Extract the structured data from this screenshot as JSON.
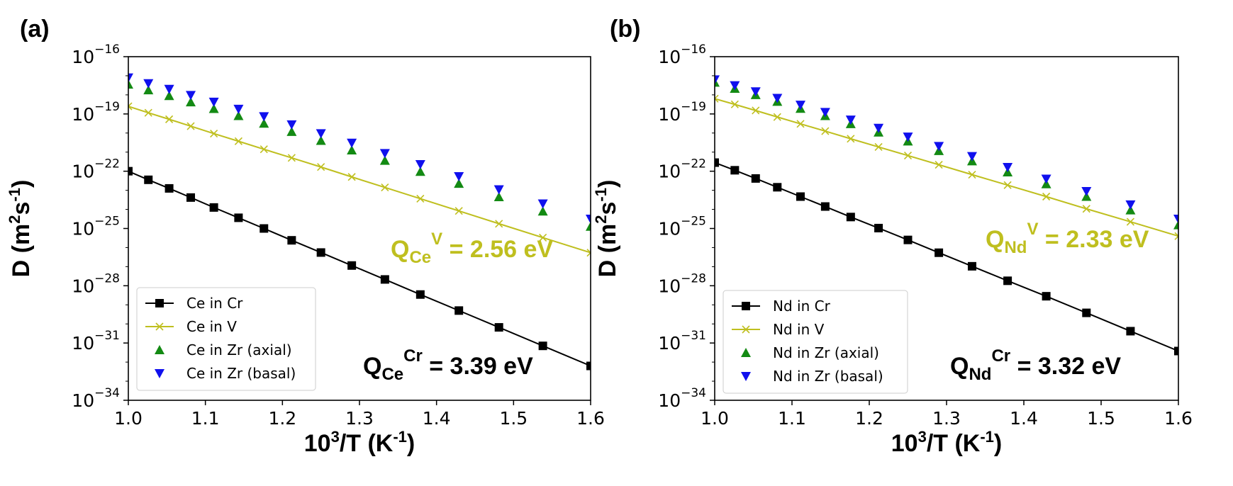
{
  "colors": {
    "cr": "#000000",
    "v": "#bfbf1f",
    "axial": "#138a13",
    "basal": "#1010ee"
  },
  "chart_data": [
    {
      "panel_label": "(a)",
      "type": "scatter",
      "xlabel": {
        "base": "10",
        "sup1": "3",
        "mid": "/T (K",
        "sup2": "-1",
        "end": ")"
      },
      "ylabel": {
        "base": "D (m",
        "sup1": "2",
        "mid": "s",
        "sup2": "-1",
        "end": ")"
      },
      "xlim": [
        1.0,
        1.6
      ],
      "ylim": [
        1e-34,
        1e-16
      ],
      "yscale": "log",
      "xticks": [
        "1.0",
        "1.1",
        "1.2",
        "1.3",
        "1.4",
        "1.5",
        "1.6"
      ],
      "yticks": [
        {
          "value": -16,
          "base": "10",
          "exp": "−16"
        },
        {
          "value": -19,
          "base": "10",
          "exp": "−19"
        },
        {
          "value": -22,
          "base": "10",
          "exp": "−22"
        },
        {
          "value": -25,
          "base": "10",
          "exp": "−25"
        },
        {
          "value": -28,
          "base": "10",
          "exp": "−28"
        },
        {
          "value": -31,
          "base": "10",
          "exp": "−31"
        },
        {
          "value": -34,
          "base": "10",
          "exp": "−34"
        }
      ],
      "x": [
        1.0,
        1.026,
        1.053,
        1.081,
        1.111,
        1.143,
        1.176,
        1.212,
        1.25,
        1.29,
        1.333,
        1.379,
        1.429,
        1.481,
        1.538,
        1.6
      ],
      "legend_position": "lower-left",
      "series": [
        {
          "name": "Ce in Cr",
          "key": "cr",
          "marker": "square",
          "line": true,
          "log10_y": [
            -22.0,
            -22.45,
            -22.9,
            -23.38,
            -23.9,
            -24.44,
            -25.0,
            -25.62,
            -26.26,
            -26.94,
            -27.67,
            -28.46,
            -29.3,
            -30.18,
            -31.15,
            -32.2
          ]
        },
        {
          "name": "Ce in V",
          "key": "v",
          "marker": "x",
          "line": true,
          "log10_y": [
            -18.6,
            -18.94,
            -19.28,
            -19.64,
            -20.03,
            -20.43,
            -20.85,
            -21.3,
            -21.78,
            -22.3,
            -22.85,
            -23.44,
            -24.08,
            -24.75,
            -25.48,
            -26.27
          ]
        },
        {
          "name": "Ce in Zr (axial)",
          "key": "axial",
          "marker": "triangle-up",
          "line": false,
          "log10_y": [
            -17.45,
            -17.75,
            -18.05,
            -18.38,
            -18.73,
            -19.1,
            -19.5,
            -19.93,
            -20.4,
            -20.9,
            -21.44,
            -22.02,
            -22.65,
            -23.35,
            -24.1,
            -24.9
          ]
        },
        {
          "name": "Ce in Zr (basal)",
          "key": "basal",
          "marker": "triangle-down",
          "line": false,
          "log10_y": [
            -17.1,
            -17.4,
            -17.7,
            -18.02,
            -18.37,
            -18.74,
            -19.13,
            -19.56,
            -20.02,
            -20.52,
            -21.06,
            -21.64,
            -22.27,
            -22.96,
            -23.7,
            -24.5
          ]
        }
      ],
      "annotations": [
        {
          "key": "v",
          "base": "Q",
          "sub": "Ce",
          "sup": "V",
          "value": " = 2.56 eV"
        },
        {
          "key": "cr",
          "base": "Q",
          "sub": "Ce",
          "sup": "Cr",
          "value": " = 3.39 eV"
        }
      ]
    },
    {
      "panel_label": "(b)",
      "type": "scatter",
      "xlabel": {
        "base": "10",
        "sup1": "3",
        "mid": "/T (K",
        "sup2": "-1",
        "end": ")"
      },
      "ylabel": {
        "base": "D (m",
        "sup1": "2",
        "mid": "s",
        "sup2": "-1",
        "end": ")"
      },
      "xlim": [
        1.0,
        1.6
      ],
      "ylim": [
        1e-34,
        1e-16
      ],
      "yscale": "log",
      "xticks": [
        "1.0",
        "1.1",
        "1.2",
        "1.3",
        "1.4",
        "1.5",
        "1.6"
      ],
      "yticks": [
        {
          "value": -16,
          "base": "10",
          "exp": "−16"
        },
        {
          "value": -19,
          "base": "10",
          "exp": "−19"
        },
        {
          "value": -22,
          "base": "10",
          "exp": "−22"
        },
        {
          "value": -25,
          "base": "10",
          "exp": "−25"
        },
        {
          "value": -28,
          "base": "10",
          "exp": "−28"
        },
        {
          "value": -31,
          "base": "10",
          "exp": "−31"
        },
        {
          "value": -34,
          "base": "10",
          "exp": "−34"
        }
      ],
      "x": [
        1.0,
        1.026,
        1.053,
        1.081,
        1.111,
        1.143,
        1.176,
        1.212,
        1.25,
        1.29,
        1.333,
        1.379,
        1.429,
        1.481,
        1.538,
        1.6
      ],
      "legend_position": "lower-left",
      "series": [
        {
          "name": "Nd in Cr",
          "key": "cr",
          "marker": "square",
          "line": true,
          "log10_y": [
            -21.55,
            -21.95,
            -22.38,
            -22.84,
            -23.33,
            -23.85,
            -24.4,
            -24.98,
            -25.6,
            -26.27,
            -26.98,
            -27.74,
            -28.55,
            -29.42,
            -30.38,
            -31.42
          ]
        },
        {
          "name": "Nd in V",
          "key": "v",
          "marker": "x",
          "line": true,
          "log10_y": [
            -18.2,
            -18.5,
            -18.82,
            -19.16,
            -19.52,
            -19.9,
            -20.3,
            -20.73,
            -21.18,
            -21.66,
            -22.18,
            -22.73,
            -23.33,
            -23.97,
            -24.65,
            -25.4
          ]
        },
        {
          "name": "Nd in Zr (axial)",
          "key": "axial",
          "marker": "triangle-up",
          "line": false,
          "log10_y": [
            -17.35,
            -17.67,
            -18.0,
            -18.35,
            -18.72,
            -19.1,
            -19.52,
            -19.96,
            -20.43,
            -20.93,
            -21.47,
            -22.05,
            -22.67,
            -23.33,
            -24.04,
            -24.82
          ]
        },
        {
          "name": "Nd in Zr (basal)",
          "key": "basal",
          "marker": "triangle-down",
          "line": false,
          "log10_y": [
            -17.2,
            -17.51,
            -17.83,
            -18.17,
            -18.53,
            -18.91,
            -19.31,
            -19.74,
            -20.2,
            -20.69,
            -21.22,
            -21.79,
            -22.4,
            -23.05,
            -23.75,
            -24.5
          ]
        }
      ],
      "annotations": [
        {
          "key": "v",
          "base": "Q",
          "sub": "Nd",
          "sup": "V",
          "value": " = 2.33 eV"
        },
        {
          "key": "cr",
          "base": "Q",
          "sub": "Nd",
          "sup": "Cr",
          "value": " = 3.32 eV"
        }
      ]
    }
  ]
}
